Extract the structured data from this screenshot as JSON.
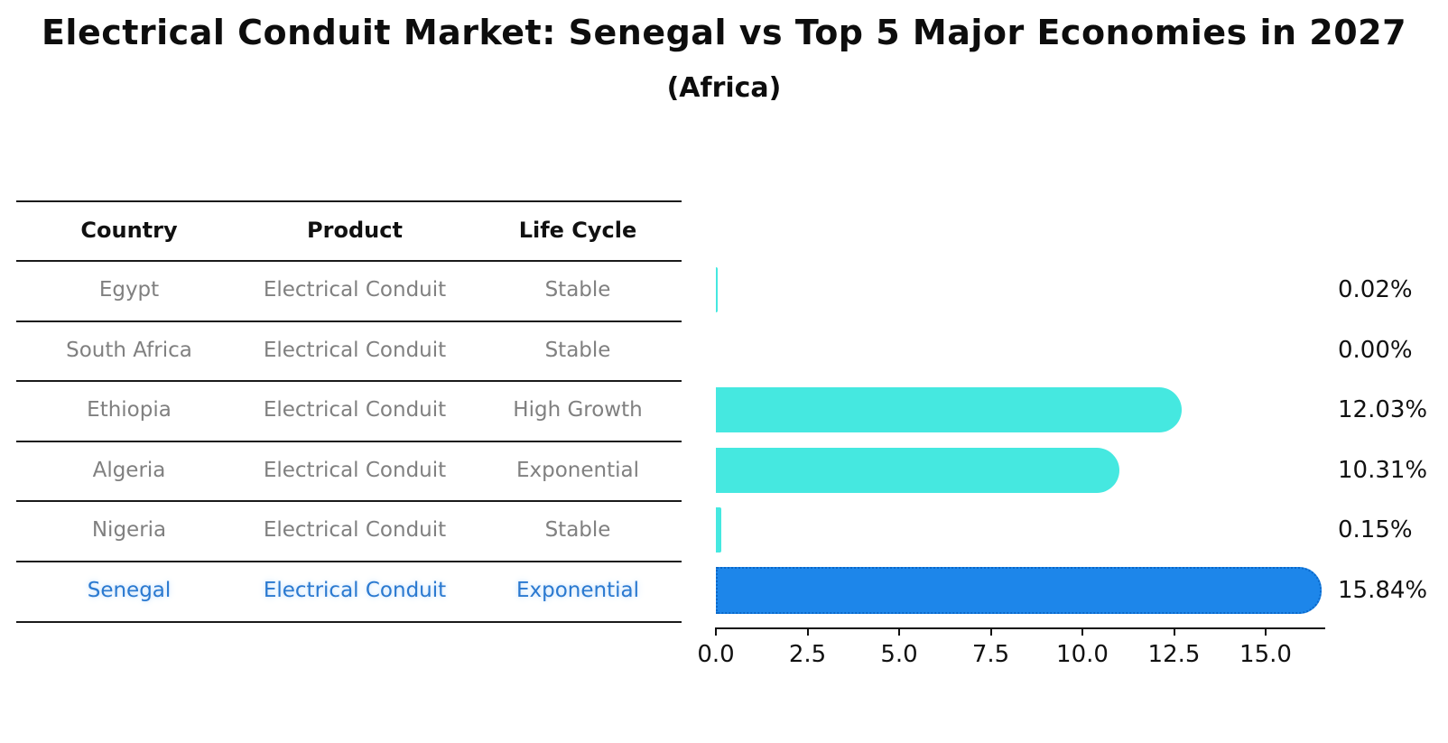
{
  "title": "Electrical Conduit Market: Senegal vs Top 5 Major Economies in 2027",
  "subtitle": "(Africa)",
  "table": {
    "headers": [
      "Country",
      "Product",
      "Life Cycle"
    ],
    "rows": [
      {
        "country": "Egypt",
        "product": "Electrical Conduit",
        "life_cycle": "Stable",
        "highlight": false
      },
      {
        "country": "South Africa",
        "product": "Electrical Conduit",
        "life_cycle": "Stable",
        "highlight": false
      },
      {
        "country": "Ethiopia",
        "product": "Electrical Conduit",
        "life_cycle": "High Growth",
        "highlight": false
      },
      {
        "country": "Algeria",
        "product": "Electrical Conduit",
        "life_cycle": "Exponential",
        "highlight": false
      },
      {
        "country": "Nigeria",
        "product": "Electrical Conduit",
        "life_cycle": "Stable",
        "highlight": false
      },
      {
        "country": "Senegal",
        "product": "Electrical Conduit",
        "life_cycle": "Exponential",
        "highlight": true
      }
    ]
  },
  "chart_data": {
    "type": "bar",
    "orientation": "horizontal",
    "title": "Electrical Conduit Market: Senegal vs Top 5 Major Economies in 2027 (Africa)",
    "categories": [
      "Egypt",
      "South Africa",
      "Ethiopia",
      "Algeria",
      "Nigeria",
      "Senegal"
    ],
    "values": [
      0.02,
      0.0,
      12.03,
      10.31,
      0.15,
      15.84
    ],
    "value_labels": [
      "0.02%",
      "0.00%",
      "12.03%",
      "10.31%",
      "0.15%",
      "15.84%"
    ],
    "unit": "percent",
    "x_tick_labels": [
      "0.0",
      "2.5",
      "5.0",
      "7.5",
      "10.0",
      "12.5",
      "15.0"
    ],
    "x_tick_values": [
      0,
      2.5,
      5,
      7.5,
      10,
      12.5,
      15
    ],
    "xlim": [
      0,
      16.6
    ],
    "grid": false,
    "legend": false,
    "highlight_index": 5,
    "colors": {
      "bar_default": "#45e8e0",
      "bar_highlight": "#1d86ea",
      "bar_highlight_border": "#0a67c8",
      "text_default": "#808080",
      "text_highlight": "#2a79d0",
      "axis": "#111111"
    }
  }
}
